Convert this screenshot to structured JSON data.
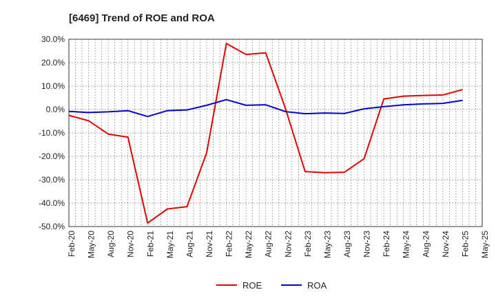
{
  "chart_data": {
    "type": "line",
    "title": "[6469]  Trend of ROE and ROA",
    "xlabel": "",
    "ylabel": "",
    "categories": [
      "Feb-20",
      "May-20",
      "Aug-20",
      "Nov-20",
      "Feb-21",
      "May-21",
      "Aug-21",
      "Nov-21",
      "Feb-22",
      "May-22",
      "Aug-22",
      "Nov-22",
      "Feb-23",
      "May-23",
      "Aug-23",
      "Nov-23",
      "Feb-24",
      "May-24",
      "Aug-24",
      "Nov-24",
      "Feb-25",
      "May-25"
    ],
    "ylim": [
      -50,
      30
    ],
    "yticks": [
      30,
      20,
      10,
      0,
      -10,
      -20,
      -30,
      -40,
      -50
    ],
    "ytick_labels": [
      "30.0%",
      "20.0%",
      "10.0%",
      "0.0%",
      "-10.0%",
      "-20.0%",
      "-30.0%",
      "-40.0%",
      "-50.0%"
    ],
    "grid": true,
    "legend_position": "bottom-center",
    "series": [
      {
        "name": "ROE",
        "color": "#e00000",
        "values": [
          -2.5,
          -4.8,
          -10.5,
          -11.8,
          -48.5,
          -42.5,
          -41.5,
          -18.5,
          28.2,
          23.5,
          24.2,
          0.5,
          -26.5,
          -27.0,
          -26.8,
          -21.0,
          4.5,
          5.7,
          6.0,
          6.2,
          8.5,
          null
        ]
      },
      {
        "name": "ROA",
        "color": "#0000cc",
        "values": [
          -0.8,
          -1.3,
          -1.0,
          -0.5,
          -3.0,
          -0.5,
          -0.2,
          1.8,
          4.2,
          1.8,
          2.0,
          -0.9,
          -1.8,
          -1.5,
          -1.7,
          0.3,
          1.2,
          2.0,
          2.4,
          2.6,
          3.9,
          null
        ]
      }
    ]
  }
}
